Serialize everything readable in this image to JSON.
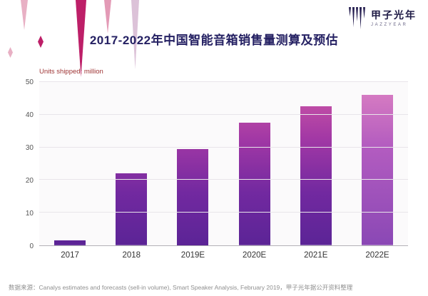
{
  "logo": {
    "name": "甲子光年",
    "subtitle": "JAZZYEAR",
    "icon": "paint-drip-bars"
  },
  "decor": {
    "icon": "paint-drips"
  },
  "chart_data": {
    "type": "bar",
    "title": "2017-2022年中国智能音箱销售量测算及预估",
    "unit_label": "Units shipped: million",
    "categories": [
      "2017",
      "2018",
      "2019E",
      "2020E",
      "2021E",
      "2022E"
    ],
    "values": [
      1.5,
      22,
      29.5,
      37.5,
      42.5,
      46
    ],
    "xlabel": "",
    "ylabel": "Units shipped: million",
    "ylim": [
      0,
      50
    ],
    "yticks": [
      0,
      10,
      20,
      30,
      40,
      50
    ],
    "grid": true,
    "legend": "none",
    "last_bar_light": true,
    "colors": {
      "title": "#252163",
      "unit_label": "#9e3434",
      "bar_gradient_top": "#d45aa6",
      "bar_gradient_bottom": "#5b2496",
      "last_bar_top": "#de82c2",
      "accent_magenta": "#bd1f68"
    }
  },
  "footer": {
    "source": "数据来源：Canalys estimates and forecasts (sell-in volume), Smart Speaker Analysis, February 2019，甲子光年据公开资料整理"
  }
}
